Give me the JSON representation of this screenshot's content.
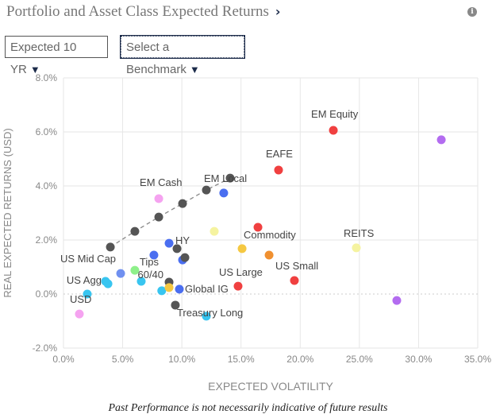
{
  "header": {
    "title": "Portfolio and Asset Class Expected Returns",
    "chevron": "›",
    "info_icon": "info-icon"
  },
  "controls": {
    "horizon": "Expected 10 YR",
    "benchmark": "Select a Benchmark"
  },
  "footer": "Past Performance is not necessarily indicative of future results",
  "chart_data": {
    "type": "scatter",
    "xlabel": "EXPECTED VOLATILITY",
    "ylabel": "REAL EXPECTED RETURNS (USD)",
    "xlim": [
      0,
      35
    ],
    "ylim": [
      -2,
      8
    ],
    "xticks": [
      "0.0%",
      "5.0%",
      "10.0%",
      "15.0%",
      "20.0%",
      "25.0%",
      "30.0%",
      "35.0%"
    ],
    "yticks": [
      "-2.0%",
      "0.0%",
      "2.0%",
      "4.0%",
      "6.0%",
      "8.0%"
    ],
    "grid": true,
    "frontier": [
      [
        3.96,
        1.74
      ],
      [
        6.03,
        2.32
      ],
      [
        8.05,
        2.85
      ],
      [
        10.06,
        3.35
      ],
      [
        12.07,
        3.85
      ],
      [
        14.08,
        4.29
      ]
    ],
    "points": [
      {
        "x": 8.05,
        "y": 3.53,
        "color": "#f5a3f0",
        "label": "EM Cash"
      },
      {
        "x": 13.54,
        "y": 3.74,
        "color": "#4a6ef0",
        "label": ""
      },
      {
        "x": 12.74,
        "y": 2.32,
        "color": "#f5f3a0",
        "label": ""
      },
      {
        "x": 8.92,
        "y": 1.88,
        "color": "#4a6ef0",
        "label": ""
      },
      {
        "x": 7.64,
        "y": 1.44,
        "color": "#4a6ef0",
        "label": ""
      },
      {
        "x": 9.59,
        "y": 1.68,
        "color": "#555555",
        "label": "HY"
      },
      {
        "x": 10.06,
        "y": 1.26,
        "color": "#4a6ef0",
        "label": ""
      },
      {
        "x": 10.26,
        "y": 1.35,
        "color": "#555555",
        "label": ""
      },
      {
        "x": 6.03,
        "y": 0.88,
        "color": "#8ef08a",
        "label": "Tips"
      },
      {
        "x": 4.83,
        "y": 0.76,
        "color": "#7090f0",
        "label": "US Mid Cap"
      },
      {
        "x": 3.55,
        "y": 0.47,
        "color": "#38c5f0",
        "label": "US Agg"
      },
      {
        "x": 3.76,
        "y": 0.38,
        "color": "#38c5f0",
        "label": ""
      },
      {
        "x": 6.57,
        "y": 0.47,
        "color": "#38c5f0",
        "label": ""
      },
      {
        "x": 2.01,
        "y": 0.0,
        "color": "#38c5f0",
        "label": ""
      },
      {
        "x": 8.3,
        "y": 0.12,
        "color": "#38c5f0",
        "label": ""
      },
      {
        "x": 12.07,
        "y": -0.82,
        "color": "#38c5f0",
        "label": ""
      },
      {
        "x": 8.92,
        "y": 0.44,
        "color": "#555555",
        "label": "60/40"
      },
      {
        "x": 8.92,
        "y": 0.24,
        "color": "#f5c842",
        "label": ""
      },
      {
        "x": 9.79,
        "y": 0.18,
        "color": "#4a6ef0",
        "label": "Global IG"
      },
      {
        "x": 9.45,
        "y": -0.41,
        "color": "#555555",
        "label": "Treasury Long"
      },
      {
        "x": 1.34,
        "y": -0.74,
        "color": "#f5a3f0",
        "label": "USD"
      },
      {
        "x": 14.75,
        "y": 0.29,
        "color": "#f04040",
        "label": "US Large"
      },
      {
        "x": 15.09,
        "y": 1.68,
        "color": "#f5c842",
        "label": "Commodity"
      },
      {
        "x": 17.37,
        "y": 1.44,
        "color": "#f09030",
        "label": ""
      },
      {
        "x": 16.43,
        "y": 2.47,
        "color": "#f04040",
        "label": ""
      },
      {
        "x": 19.51,
        "y": 0.5,
        "color": "#f04040",
        "label": "US Small"
      },
      {
        "x": 18.17,
        "y": 4.59,
        "color": "#f04040",
        "label": "EAFE"
      },
      {
        "x": 22.8,
        "y": 6.06,
        "color": "#f04040",
        "label": "EM Equity"
      },
      {
        "x": 24.74,
        "y": 1.71,
        "color": "#f5f3a0",
        "label": "REITS"
      },
      {
        "x": 31.92,
        "y": 5.71,
        "color": "#b36cf0",
        "label": ""
      },
      {
        "x": 28.16,
        "y": -0.24,
        "color": "#b36cf0",
        "label": ""
      }
    ],
    "frontier_end_label": "EM Local"
  }
}
